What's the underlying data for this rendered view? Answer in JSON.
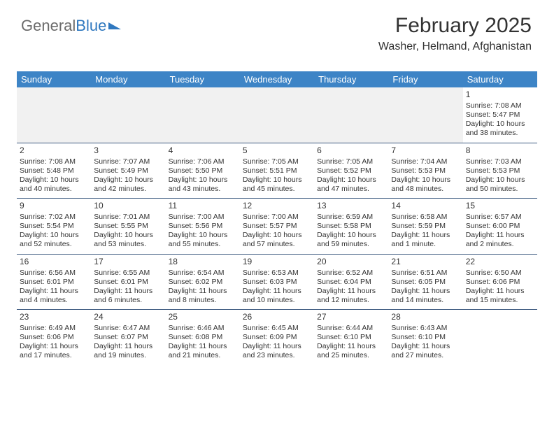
{
  "logo": {
    "word1": "General",
    "word2": "Blue"
  },
  "title": "February 2025",
  "subtitle": "Washer, Helmand, Afghanistan",
  "colors": {
    "header_bg": "#3d84c6",
    "header_text": "#ffffff",
    "blank_bg": "#f1f1f1",
    "rule": "#3d5a80",
    "logo_gray": "#6b6b6b",
    "logo_blue": "#2f78bf",
    "body_text": "#333333",
    "page_bg": "#ffffff"
  },
  "day_headers": [
    "Sunday",
    "Monday",
    "Tuesday",
    "Wednesday",
    "Thursday",
    "Friday",
    "Saturday"
  ],
  "weeks": [
    [
      null,
      null,
      null,
      null,
      null,
      null,
      {
        "n": "1",
        "sunrise": "Sunrise: 7:08 AM",
        "sunset": "Sunset: 5:47 PM",
        "dl1": "Daylight: 10 hours",
        "dl2": "and 38 minutes."
      }
    ],
    [
      {
        "n": "2",
        "sunrise": "Sunrise: 7:08 AM",
        "sunset": "Sunset: 5:48 PM",
        "dl1": "Daylight: 10 hours",
        "dl2": "and 40 minutes."
      },
      {
        "n": "3",
        "sunrise": "Sunrise: 7:07 AM",
        "sunset": "Sunset: 5:49 PM",
        "dl1": "Daylight: 10 hours",
        "dl2": "and 42 minutes."
      },
      {
        "n": "4",
        "sunrise": "Sunrise: 7:06 AM",
        "sunset": "Sunset: 5:50 PM",
        "dl1": "Daylight: 10 hours",
        "dl2": "and 43 minutes."
      },
      {
        "n": "5",
        "sunrise": "Sunrise: 7:05 AM",
        "sunset": "Sunset: 5:51 PM",
        "dl1": "Daylight: 10 hours",
        "dl2": "and 45 minutes."
      },
      {
        "n": "6",
        "sunrise": "Sunrise: 7:05 AM",
        "sunset": "Sunset: 5:52 PM",
        "dl1": "Daylight: 10 hours",
        "dl2": "and 47 minutes."
      },
      {
        "n": "7",
        "sunrise": "Sunrise: 7:04 AM",
        "sunset": "Sunset: 5:53 PM",
        "dl1": "Daylight: 10 hours",
        "dl2": "and 48 minutes."
      },
      {
        "n": "8",
        "sunrise": "Sunrise: 7:03 AM",
        "sunset": "Sunset: 5:53 PM",
        "dl1": "Daylight: 10 hours",
        "dl2": "and 50 minutes."
      }
    ],
    [
      {
        "n": "9",
        "sunrise": "Sunrise: 7:02 AM",
        "sunset": "Sunset: 5:54 PM",
        "dl1": "Daylight: 10 hours",
        "dl2": "and 52 minutes."
      },
      {
        "n": "10",
        "sunrise": "Sunrise: 7:01 AM",
        "sunset": "Sunset: 5:55 PM",
        "dl1": "Daylight: 10 hours",
        "dl2": "and 53 minutes."
      },
      {
        "n": "11",
        "sunrise": "Sunrise: 7:00 AM",
        "sunset": "Sunset: 5:56 PM",
        "dl1": "Daylight: 10 hours",
        "dl2": "and 55 minutes."
      },
      {
        "n": "12",
        "sunrise": "Sunrise: 7:00 AM",
        "sunset": "Sunset: 5:57 PM",
        "dl1": "Daylight: 10 hours",
        "dl2": "and 57 minutes."
      },
      {
        "n": "13",
        "sunrise": "Sunrise: 6:59 AM",
        "sunset": "Sunset: 5:58 PM",
        "dl1": "Daylight: 10 hours",
        "dl2": "and 59 minutes."
      },
      {
        "n": "14",
        "sunrise": "Sunrise: 6:58 AM",
        "sunset": "Sunset: 5:59 PM",
        "dl1": "Daylight: 11 hours",
        "dl2": "and 1 minute."
      },
      {
        "n": "15",
        "sunrise": "Sunrise: 6:57 AM",
        "sunset": "Sunset: 6:00 PM",
        "dl1": "Daylight: 11 hours",
        "dl2": "and 2 minutes."
      }
    ],
    [
      {
        "n": "16",
        "sunrise": "Sunrise: 6:56 AM",
        "sunset": "Sunset: 6:01 PM",
        "dl1": "Daylight: 11 hours",
        "dl2": "and 4 minutes."
      },
      {
        "n": "17",
        "sunrise": "Sunrise: 6:55 AM",
        "sunset": "Sunset: 6:01 PM",
        "dl1": "Daylight: 11 hours",
        "dl2": "and 6 minutes."
      },
      {
        "n": "18",
        "sunrise": "Sunrise: 6:54 AM",
        "sunset": "Sunset: 6:02 PM",
        "dl1": "Daylight: 11 hours",
        "dl2": "and 8 minutes."
      },
      {
        "n": "19",
        "sunrise": "Sunrise: 6:53 AM",
        "sunset": "Sunset: 6:03 PM",
        "dl1": "Daylight: 11 hours",
        "dl2": "and 10 minutes."
      },
      {
        "n": "20",
        "sunrise": "Sunrise: 6:52 AM",
        "sunset": "Sunset: 6:04 PM",
        "dl1": "Daylight: 11 hours",
        "dl2": "and 12 minutes."
      },
      {
        "n": "21",
        "sunrise": "Sunrise: 6:51 AM",
        "sunset": "Sunset: 6:05 PM",
        "dl1": "Daylight: 11 hours",
        "dl2": "and 14 minutes."
      },
      {
        "n": "22",
        "sunrise": "Sunrise: 6:50 AM",
        "sunset": "Sunset: 6:06 PM",
        "dl1": "Daylight: 11 hours",
        "dl2": "and 15 minutes."
      }
    ],
    [
      {
        "n": "23",
        "sunrise": "Sunrise: 6:49 AM",
        "sunset": "Sunset: 6:06 PM",
        "dl1": "Daylight: 11 hours",
        "dl2": "and 17 minutes."
      },
      {
        "n": "24",
        "sunrise": "Sunrise: 6:47 AM",
        "sunset": "Sunset: 6:07 PM",
        "dl1": "Daylight: 11 hours",
        "dl2": "and 19 minutes."
      },
      {
        "n": "25",
        "sunrise": "Sunrise: 6:46 AM",
        "sunset": "Sunset: 6:08 PM",
        "dl1": "Daylight: 11 hours",
        "dl2": "and 21 minutes."
      },
      {
        "n": "26",
        "sunrise": "Sunrise: 6:45 AM",
        "sunset": "Sunset: 6:09 PM",
        "dl1": "Daylight: 11 hours",
        "dl2": "and 23 minutes."
      },
      {
        "n": "27",
        "sunrise": "Sunrise: 6:44 AM",
        "sunset": "Sunset: 6:10 PM",
        "dl1": "Daylight: 11 hours",
        "dl2": "and 25 minutes."
      },
      {
        "n": "28",
        "sunrise": "Sunrise: 6:43 AM",
        "sunset": "Sunset: 6:10 PM",
        "dl1": "Daylight: 11 hours",
        "dl2": "and 27 minutes."
      },
      null
    ]
  ]
}
